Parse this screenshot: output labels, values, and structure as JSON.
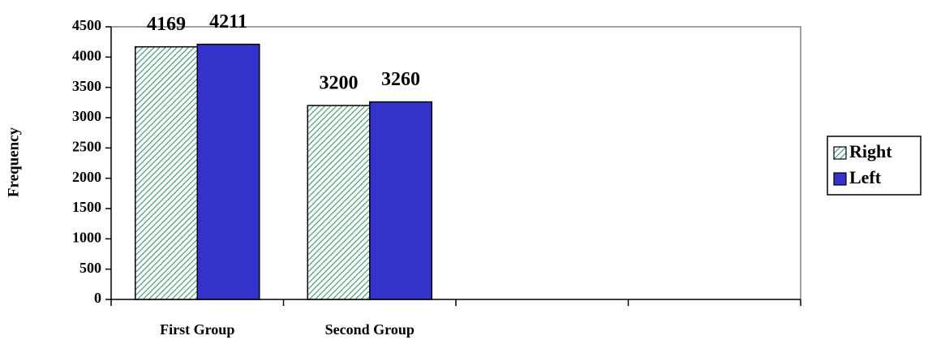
{
  "chart_data": {
    "type": "bar",
    "y_label": "Frequency",
    "categories": [
      "First Group",
      "Second Group",
      null,
      null
    ],
    "series": [
      {
        "name": "Right",
        "color": "#339966",
        "fill_pattern": "hatch",
        "values": [
          4169,
          3200,
          null,
          null
        ]
      },
      {
        "name": "Left",
        "color": "#3333cc",
        "fill_pattern": "solid",
        "values": [
          4211,
          3260,
          null,
          null
        ]
      }
    ],
    "ylim": [
      0,
      4500
    ],
    "yticks": [
      0,
      500,
      1000,
      1500,
      2000,
      2500,
      3000,
      3500,
      4000,
      4500
    ],
    "grid": false,
    "data_labels": true,
    "legend": "right"
  }
}
